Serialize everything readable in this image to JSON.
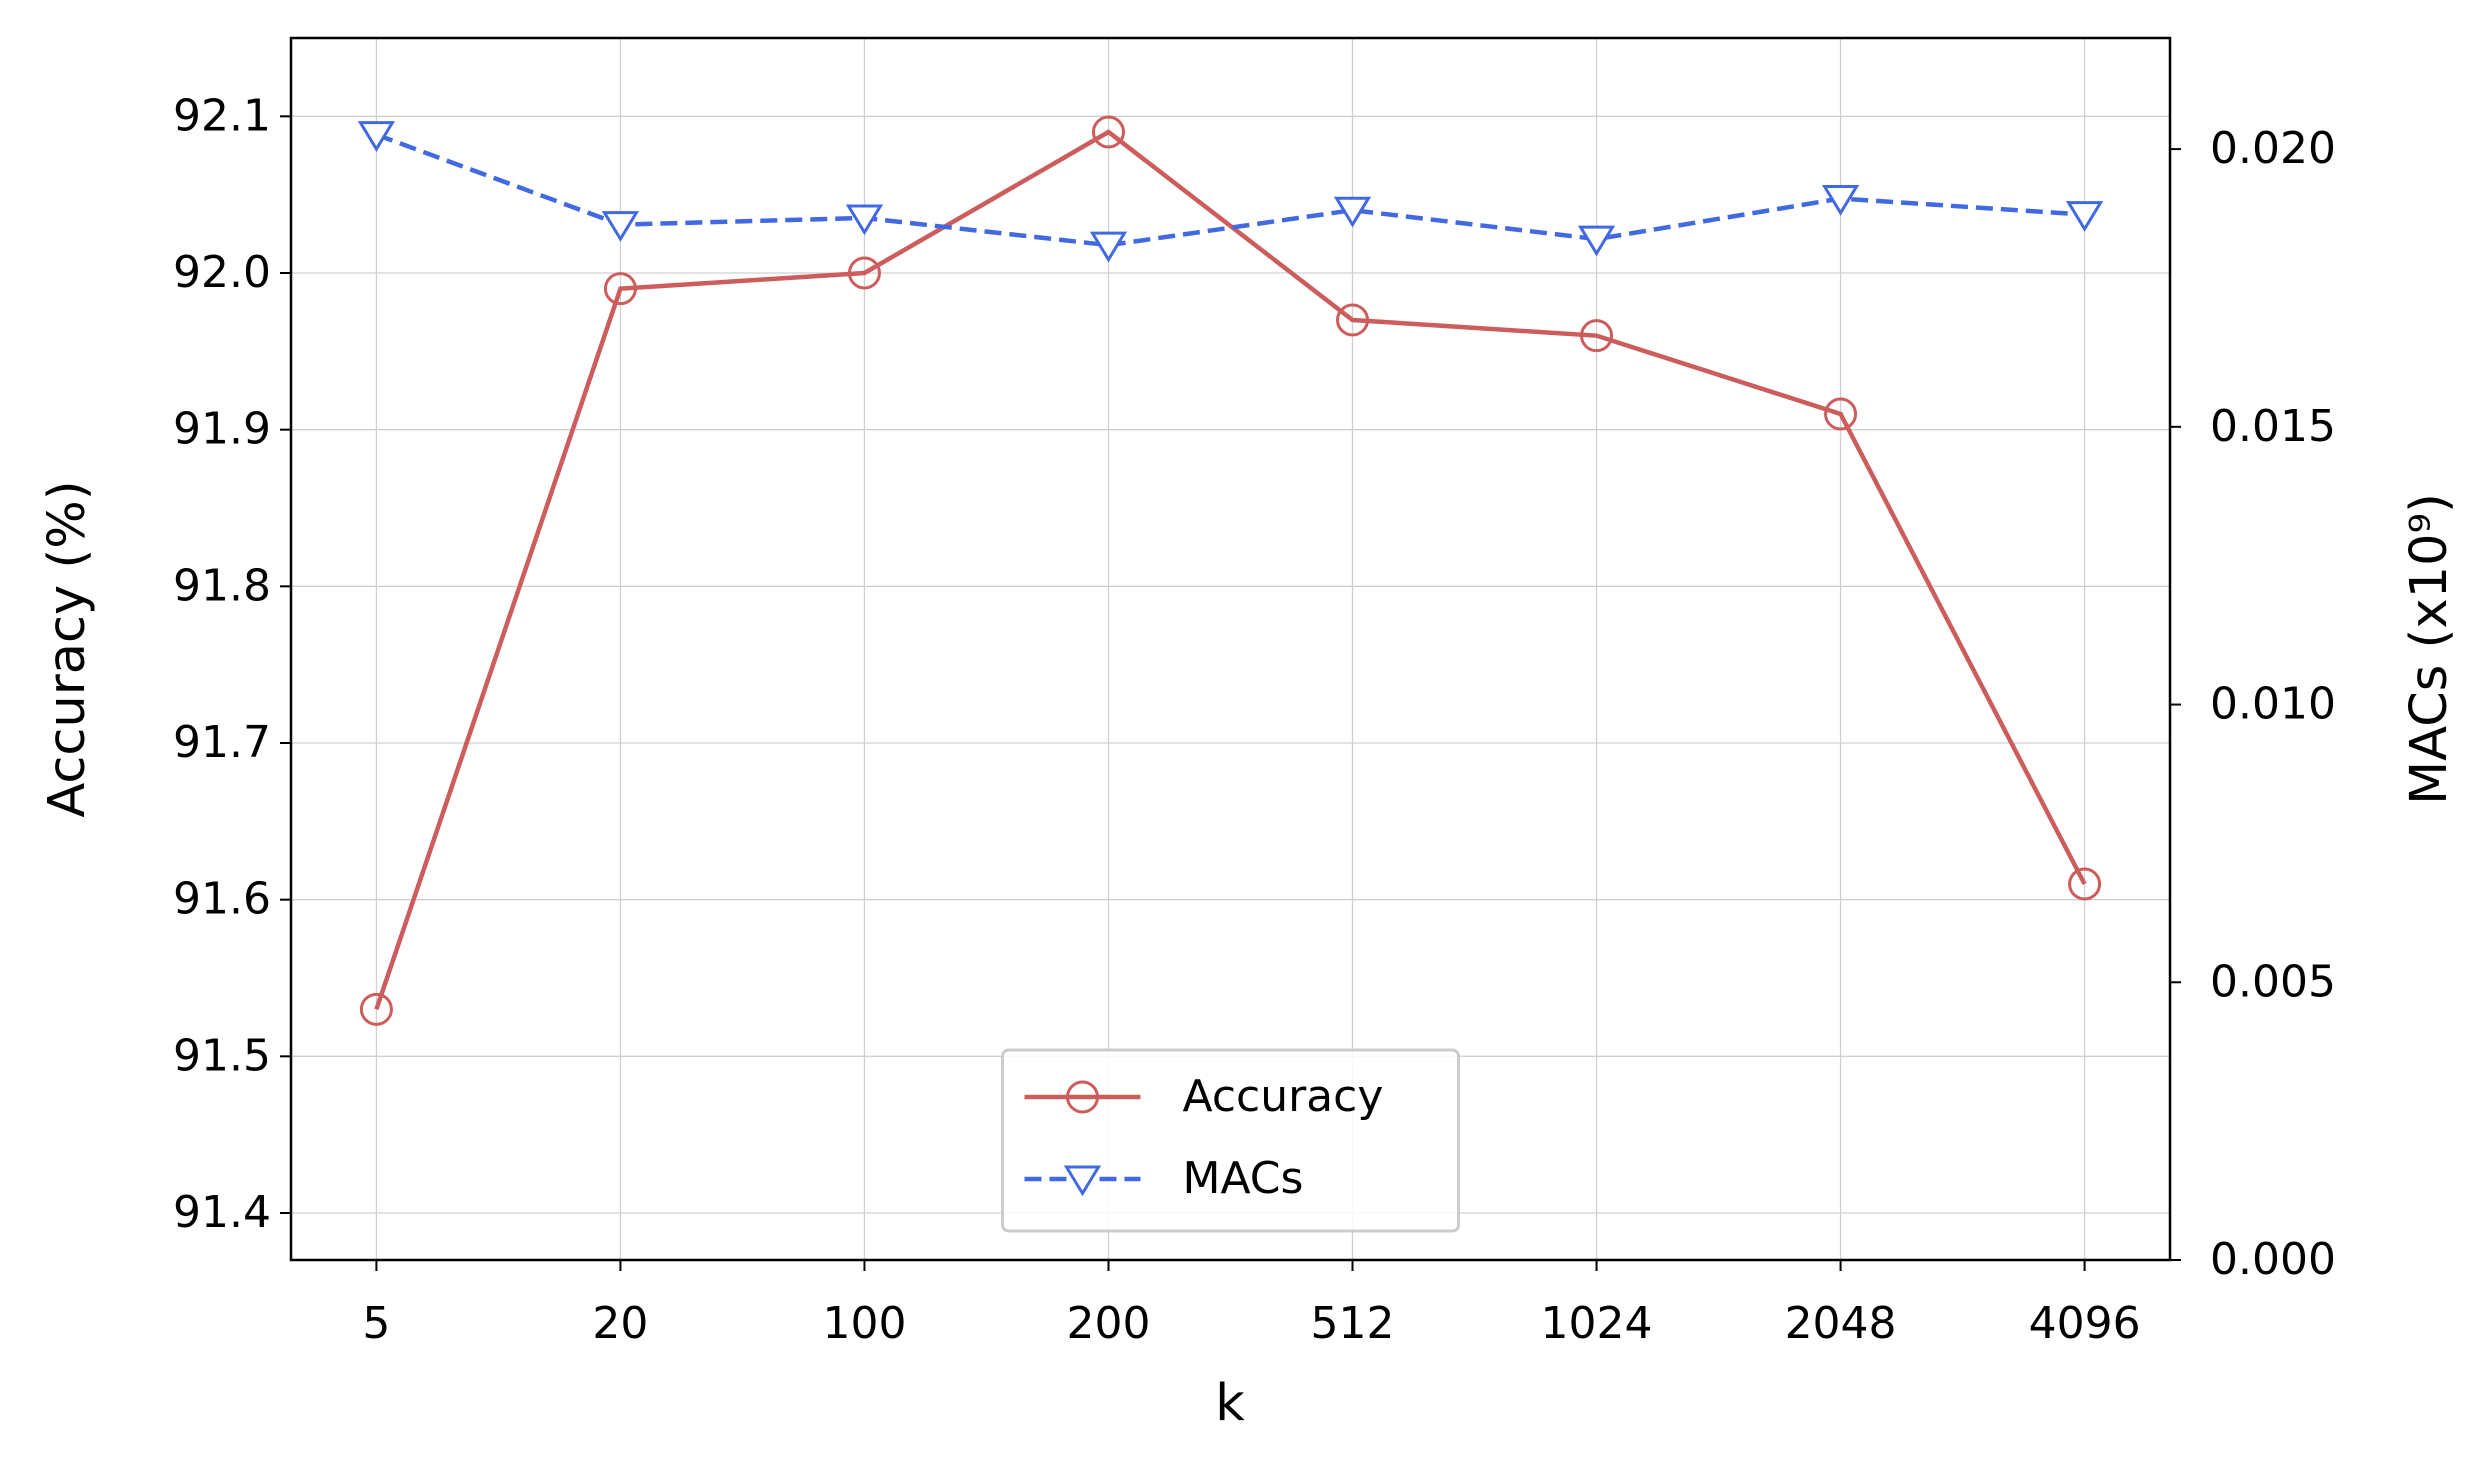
{
  "chart_data": {
    "type": "line",
    "xlabel": "k",
    "ylabel": "Accuracy (%)",
    "y2label": "MACs (x10⁹)",
    "categories": [
      "5",
      "20",
      "100",
      "200",
      "512",
      "1024",
      "2048",
      "4096"
    ],
    "series": [
      {
        "name": "Accuracy",
        "color": "#cd5c5c",
        "marker": "circle",
        "linestyle": "solid",
        "values": [
          91.53,
          91.99,
          92.0,
          92.09,
          91.97,
          91.96,
          91.91,
          91.61
        ]
      },
      {
        "name": "MACs",
        "color": "#4169e1",
        "marker": "triangle-down",
        "linestyle": "dashed",
        "axis": "y2",
        "values": [
          0.02026,
          0.01864,
          0.01876,
          0.01827,
          0.0189,
          0.01838,
          0.01911,
          0.01882
        ]
      }
    ],
    "ylim": [
      91.37,
      92.15
    ],
    "yticks": [
      91.4,
      91.5,
      91.6,
      91.7,
      91.8,
      91.9,
      {
        "value": 92.0,
        "label": "92.0"
      },
      92.1
    ],
    "y2lim": [
      0,
      0.022
    ],
    "y2ticks": [
      {
        "value": 0,
        "label": "0.000"
      },
      {
        "value": 0.005,
        "label": "0.005"
      },
      {
        "value": 0.01,
        "label": "0.010"
      },
      {
        "value": 0.015,
        "label": "0.015"
      },
      {
        "value": 0.02,
        "label": "0.020"
      }
    ],
    "grid": true,
    "legend": "lower center"
  }
}
